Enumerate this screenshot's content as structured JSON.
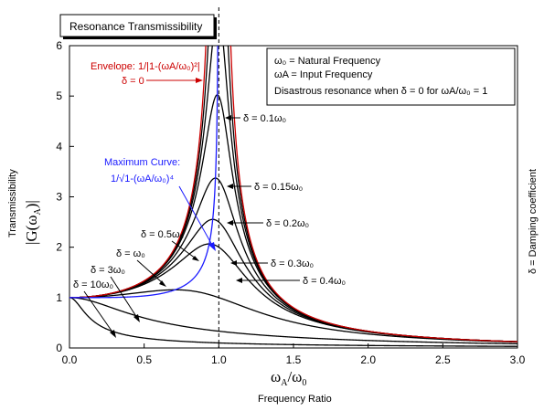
{
  "chart_data": {
    "type": "line",
    "title": "Resonance Transmissibility",
    "xlabel_main": "ω",
    "xlabel_sub_a": "A",
    "xlabel_slash": "/ω",
    "xlabel_sub_b": "0",
    "xlabel_caption": "Frequency Ratio",
    "ylabel_caption": "Transmissibility",
    "ylabel_main": "|G(ω",
    "ylabel_sub": "A",
    "ylabel_close": ")|",
    "right_label": "δ = Damping coefficient",
    "xlim": [
      0,
      3.0
    ],
    "ylim": [
      0,
      6
    ],
    "x_ticks": [
      "0.0",
      "0.5",
      "1.0",
      "1.5",
      "2.0",
      "2.5",
      "3.0"
    ],
    "y_ticks": [
      "0",
      "1",
      "2",
      "3",
      "4",
      "5",
      "6"
    ],
    "grid": false,
    "legend": {
      "line1": "ω₀ = Natural Frequency",
      "line2": "ωA = Input Frequency",
      "line3": "Disastrous resonance when δ = 0 for ωA/ω₀ = 1"
    },
    "series": [
      {
        "delta": 0.1,
        "color": "#000000",
        "label": "δ = 0.1ω₀"
      },
      {
        "delta": 0.15,
        "color": "#000000",
        "label": "δ = 0.15ω₀"
      },
      {
        "delta": 0.2,
        "color": "#000000",
        "label": "δ = 0.2ω₀"
      },
      {
        "delta": 0.3,
        "color": "#000000",
        "label": "δ = 0.3ω₀"
      },
      {
        "delta": 0.4,
        "color": "#000000",
        "label": "δ = 0.4ω₀"
      },
      {
        "delta": 0.5,
        "color": "#000000",
        "label": "δ = 0.5ω₀"
      },
      {
        "delta": 1,
        "color": "#000000",
        "label": "δ = ω₀"
      },
      {
        "delta": 3,
        "color": "#000000",
        "label": "δ = 3ω₀"
      },
      {
        "delta": 10,
        "color": "#000000",
        "label": "δ = 10ω₀"
      }
    ],
    "envelope": {
      "color": "#cc0000",
      "label_line1": "Envelope: 1/|1-(ωA/ω₀)²|",
      "label_line2": "δ = 0"
    },
    "max_curve": {
      "color": "#1a1aff",
      "label_line1": "Maximum Curve:",
      "label_line2": "1/√1-(ωA/ω₀)⁴"
    },
    "resonance_line": {
      "x": 1.0
    }
  }
}
